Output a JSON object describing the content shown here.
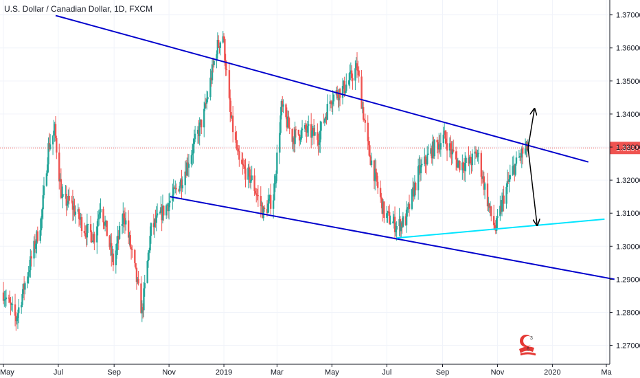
{
  "chart_data": {
    "type": "candlestick",
    "title": "U.S. Dollar / Canadian Dollar, 1D, FXCM",
    "x_ticks": [
      "May",
      "Jul",
      "Sep",
      "Nov",
      "2019",
      "Mar",
      "May",
      "Jul",
      "Sep",
      "Nov",
      "2020",
      "Ma"
    ],
    "y_ticks": [
      "1.37000",
      "1.36000",
      "1.35000",
      "1.34000",
      "1.33000",
      "1.32000",
      "1.31000",
      "1.30000",
      "1.29000",
      "1.28000",
      "1.27000"
    ],
    "ylim": [
      1.2643,
      1.3745
    ],
    "current_price": "1.32974",
    "current_price_value": 1.32974,
    "colors": {
      "up": "#26a69a",
      "down": "#ef5350",
      "trendline": "#0000cc",
      "support": "#00e5ff",
      "price_line": "#ef5350",
      "axis": "#131722"
    },
    "grid": true,
    "trendlines": [
      {
        "name": "upper",
        "start": [
          "2018-06-28",
          1.3698
        ],
        "end": [
          "2020-02-10",
          1.3255
        ]
      },
      {
        "name": "lower",
        "start": [
          "2018-11-02",
          1.315
        ],
        "end": [
          "2020-03-10",
          1.29
        ]
      },
      {
        "name": "support",
        "start": [
          "2019-07-12",
          1.3025
        ],
        "end": [
          "2020-02-28",
          1.3082
        ]
      }
    ],
    "arrows": [
      {
        "name": "up-arrow",
        "start": [
          "2019-12-05",
          1.3297
        ],
        "end": [
          "2019-12-12",
          1.3414
        ]
      },
      {
        "name": "down-arrow",
        "start": [
          "2019-12-05",
          1.3297
        ],
        "end": [
          "2019-12-15",
          1.3065
        ]
      }
    ],
    "price_path": [
      [
        "2018-05-01",
        1.286
      ],
      [
        "2018-05-15",
        1.278
      ],
      [
        "2018-05-29",
        1.293
      ],
      [
        "2018-06-12",
        1.308
      ],
      [
        "2018-06-20",
        1.33
      ],
      [
        "2018-06-27",
        1.335
      ],
      [
        "2018-07-05",
        1.314
      ],
      [
        "2018-07-15",
        1.313
      ],
      [
        "2018-07-31",
        1.305
      ],
      [
        "2018-08-10",
        1.303
      ],
      [
        "2018-08-17",
        1.313
      ],
      [
        "2018-08-31",
        1.295
      ],
      [
        "2018-09-12",
        1.31
      ],
      [
        "2018-09-24",
        1.293
      ],
      [
        "2018-10-02",
        1.28
      ],
      [
        "2018-10-12",
        1.305
      ],
      [
        "2018-10-24",
        1.31
      ],
      [
        "2018-11-05",
        1.315
      ],
      [
        "2018-11-15",
        1.32
      ],
      [
        "2018-11-28",
        1.33
      ],
      [
        "2018-12-10",
        1.34
      ],
      [
        "2018-12-24",
        1.36
      ],
      [
        "2018-12-31",
        1.364
      ],
      [
        "2019-01-08",
        1.34
      ],
      [
        "2019-01-18",
        1.325
      ],
      [
        "2019-02-01",
        1.32
      ],
      [
        "2019-02-14",
        1.31
      ],
      [
        "2019-02-25",
        1.315
      ],
      [
        "2019-03-06",
        1.342
      ],
      [
        "2019-03-18",
        1.333
      ],
      [
        "2019-04-02",
        1.335
      ],
      [
        "2019-04-16",
        1.333
      ],
      [
        "2019-04-30",
        1.345
      ],
      [
        "2019-05-15",
        1.348
      ],
      [
        "2019-05-29",
        1.354
      ],
      [
        "2019-06-10",
        1.33
      ],
      [
        "2019-06-28",
        1.31
      ],
      [
        "2019-07-12",
        1.306
      ],
      [
        "2019-07-22",
        1.308
      ],
      [
        "2019-08-05",
        1.322
      ],
      [
        "2019-08-20",
        1.329
      ],
      [
        "2019-09-03",
        1.333
      ],
      [
        "2019-09-18",
        1.325
      ],
      [
        "2019-09-30",
        1.325
      ],
      [
        "2019-10-10",
        1.328
      ],
      [
        "2019-10-24",
        1.31
      ],
      [
        "2019-10-30",
        1.305
      ],
      [
        "2019-11-08",
        1.315
      ],
      [
        "2019-11-18",
        1.323
      ],
      [
        "2019-11-28",
        1.328
      ],
      [
        "2019-12-05",
        1.3297
      ]
    ]
  }
}
